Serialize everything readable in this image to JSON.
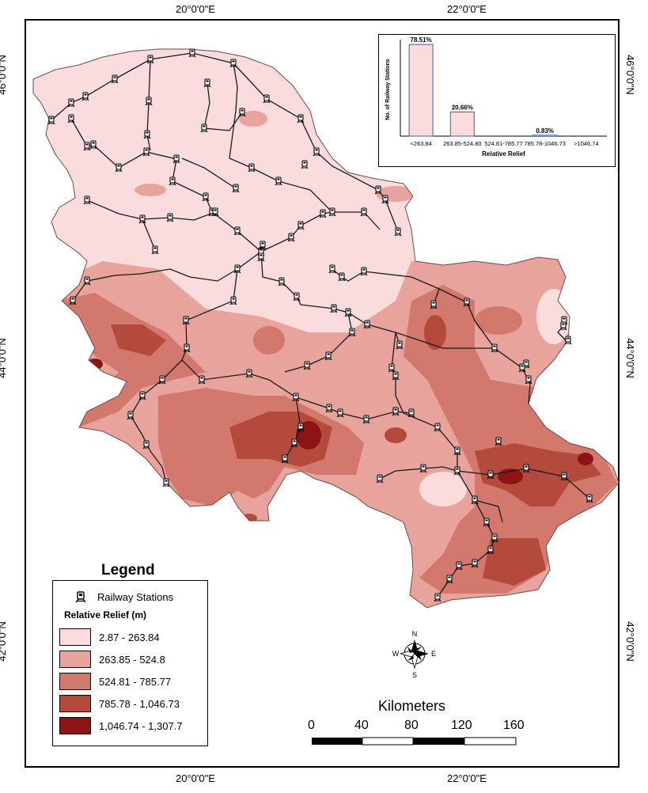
{
  "graticule": {
    "top": [
      "20°0'0\"E",
      "22°0'0\"E"
    ],
    "bottom": [
      "20°0'0\"E",
      "22°0'0\"E"
    ],
    "left": [
      "46°0'0\"N",
      "44°0'0\"N",
      "42°0'0\"N"
    ],
    "right": [
      "46°0'0\"N",
      "44°0'0\"N",
      "42°0'0\"N"
    ]
  },
  "colors": {
    "class1": "#fadcdc",
    "class2": "#e8a49c",
    "class3": "#d2786c",
    "class4": "#b44a3c",
    "class5": "#8c1414",
    "railway": "#1a1a1a"
  },
  "legend": {
    "title": "Legend",
    "station_label": "Railway Stations",
    "relief_title": "Relative Relief (m)",
    "classes": [
      "2.87 - 263.84",
      "263.85 - 524.8",
      "524.81 - 785.77",
      "785.78 - 1,046.73",
      "1,046.74 - 1,307.7"
    ]
  },
  "chart_data": {
    "type": "bar",
    "categories": [
      "<263.84",
      "263.85-524.80",
      "524.81-785.77",
      "785.78-1046.73",
      ">1046.74"
    ],
    "values": [
      78.51,
      20.66,
      0,
      0.83,
      0
    ],
    "data_labels": [
      "78.51%",
      "20.66%",
      "",
      "0.83%",
      ""
    ],
    "xlabel": "Relative Relief",
    "ylabel": "No. of Railway Stations",
    "ylim": [
      0,
      80
    ]
  },
  "north_arrow": {
    "n": "N",
    "s": "S",
    "e": "E",
    "w": "W"
  },
  "scale": {
    "title": "Kilometers",
    "ticks": [
      "0",
      "40",
      "80",
      "120",
      "160"
    ]
  }
}
